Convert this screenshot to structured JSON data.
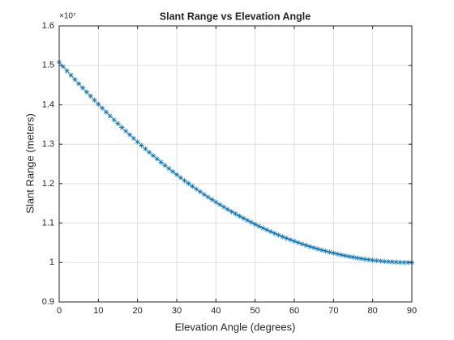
{
  "chart_data": {
    "type": "line",
    "title": "Slant Range vs Elevation Angle",
    "xlabel": "Elevation Angle (degrees)",
    "ylabel": "Slant Range (meters)",
    "y_exponent": "×10⁷",
    "x": [
      0,
      1,
      2,
      3,
      4,
      5,
      6,
      7,
      8,
      9,
      10,
      11,
      12,
      13,
      14,
      15,
      16,
      17,
      18,
      19,
      20,
      21,
      22,
      23,
      24,
      25,
      26,
      27,
      28,
      29,
      30,
      31,
      32,
      33,
      34,
      35,
      36,
      37,
      38,
      39,
      40,
      41,
      42,
      43,
      44,
      45,
      46,
      47,
      48,
      49,
      50,
      51,
      52,
      53,
      54,
      55,
      56,
      57,
      58,
      59,
      60,
      61,
      62,
      63,
      64,
      65,
      66,
      67,
      68,
      69,
      70,
      71,
      72,
      73,
      74,
      75,
      76,
      77,
      78,
      79,
      80,
      81,
      82,
      83,
      84,
      85,
      86,
      87,
      88,
      89,
      90
    ],
    "series": [
      {
        "name": "Slant Range",
        "color": "#0072bd",
        "marker": "*",
        "values": [
          15080400,
          14969600,
          14859700,
          14750600,
          14642500,
          14535300,
          14429100,
          14324000,
          14219800,
          14116700,
          14014600,
          13913700,
          13813900,
          13715200,
          13617700,
          13521300,
          13426200,
          13332300,
          13239600,
          13148200,
          13058100,
          12969100,
          12881500,
          12795100,
          12710100,
          12626400,
          12544000,
          12462900,
          12383200,
          12304800,
          12227700,
          12152000,
          12077600,
          12004600,
          11932900,
          11862600,
          11793600,
          11726000,
          11659800,
          11594900,
          11531400,
          11469200,
          11408400,
          11348900,
          11290800,
          11234000,
          11178500,
          11124400,
          11071700,
          11020200,
          10970100,
          10921300,
          10873800,
          10827600,
          10782800,
          10739200,
          10696900,
          10656000,
          10616300,
          10577900,
          10540800,
          10504900,
          10470400,
          10437000,
          10405000,
          10374200,
          10344600,
          10316400,
          10289300,
          10263400,
          10238900,
          10215500,
          10193300,
          10172400,
          10152700,
          10134200,
          10116900,
          10100800,
          10086000,
          10072300,
          10059800,
          10048500,
          10038400,
          10029500,
          10021800,
          10015300,
          10010000,
          10005800,
          10002900,
          10001100,
          10000000
        ]
      }
    ],
    "xlim": [
      0,
      90
    ],
    "xticks": [
      0,
      10,
      20,
      30,
      40,
      50,
      60,
      70,
      80,
      90
    ],
    "ylim": [
      9000000,
      16000000
    ],
    "yticks": [
      {
        "value": 9000000,
        "label": "0.9"
      },
      {
        "value": 10000000,
        "label": "1"
      },
      {
        "value": 11000000,
        "label": "1.1"
      },
      {
        "value": 12000000,
        "label": "1.2"
      },
      {
        "value": 13000000,
        "label": "1.3"
      },
      {
        "value": 14000000,
        "label": "1.4"
      },
      {
        "value": 15000000,
        "label": "1.5"
      },
      {
        "value": 16000000,
        "label": "1.6"
      }
    ],
    "grid": true
  }
}
